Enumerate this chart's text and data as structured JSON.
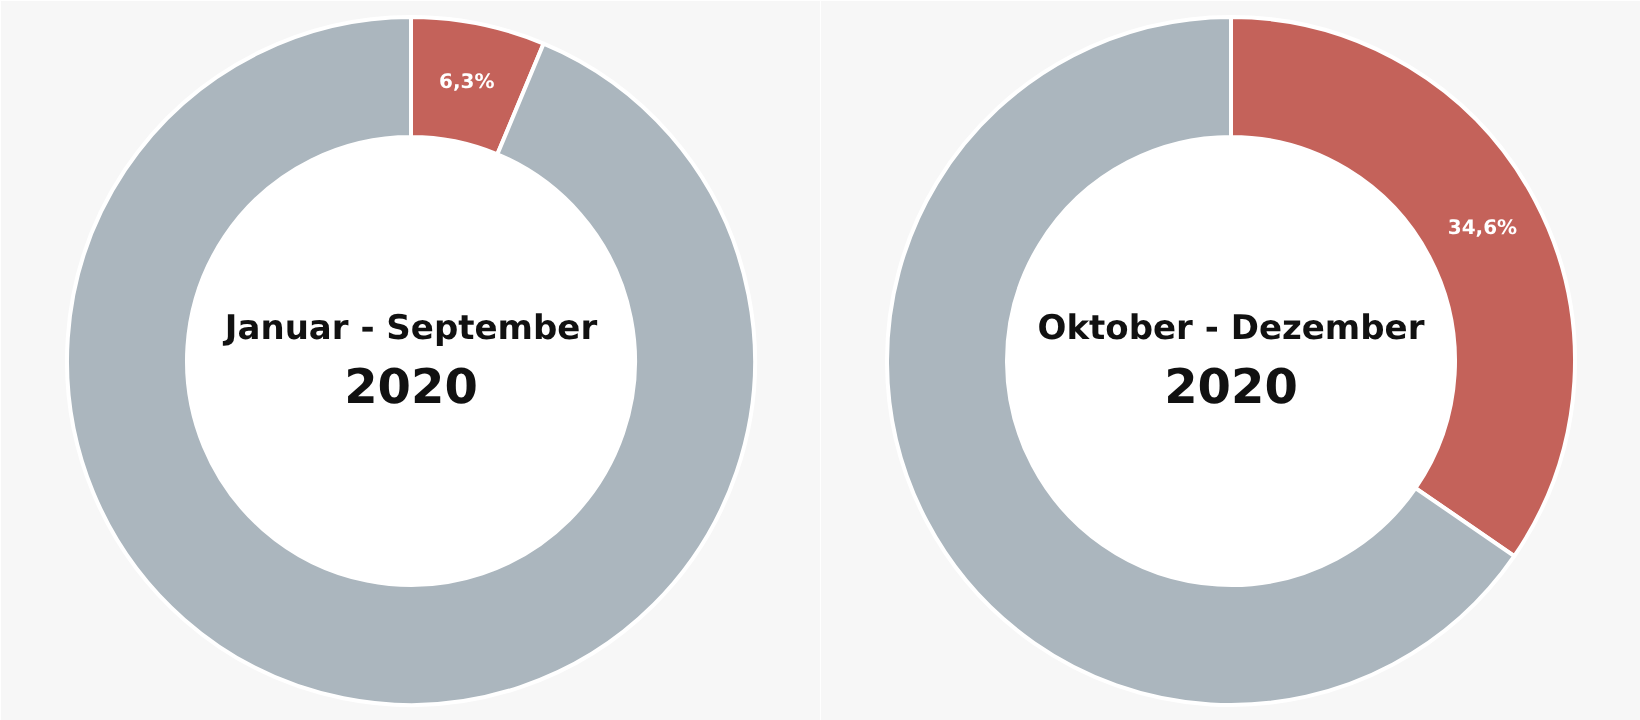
{
  "chart_data": [
    {
      "type": "donut",
      "title": "Januar - September",
      "subtitle": "2020",
      "categories": [
        null,
        null
      ],
      "values": [
        6.3,
        93.7
      ],
      "colors": [
        "#c4625a",
        "#abb6be"
      ],
      "value_labels": [
        "6,3%",
        null
      ]
    },
    {
      "type": "donut",
      "title": "Oktober - Dezember",
      "subtitle": "2020",
      "categories": [
        null,
        null
      ],
      "values": [
        34.6,
        65.4
      ],
      "colors": [
        "#c4625a",
        "#abb6be"
      ],
      "value_labels": [
        "34,6%",
        null
      ]
    }
  ]
}
